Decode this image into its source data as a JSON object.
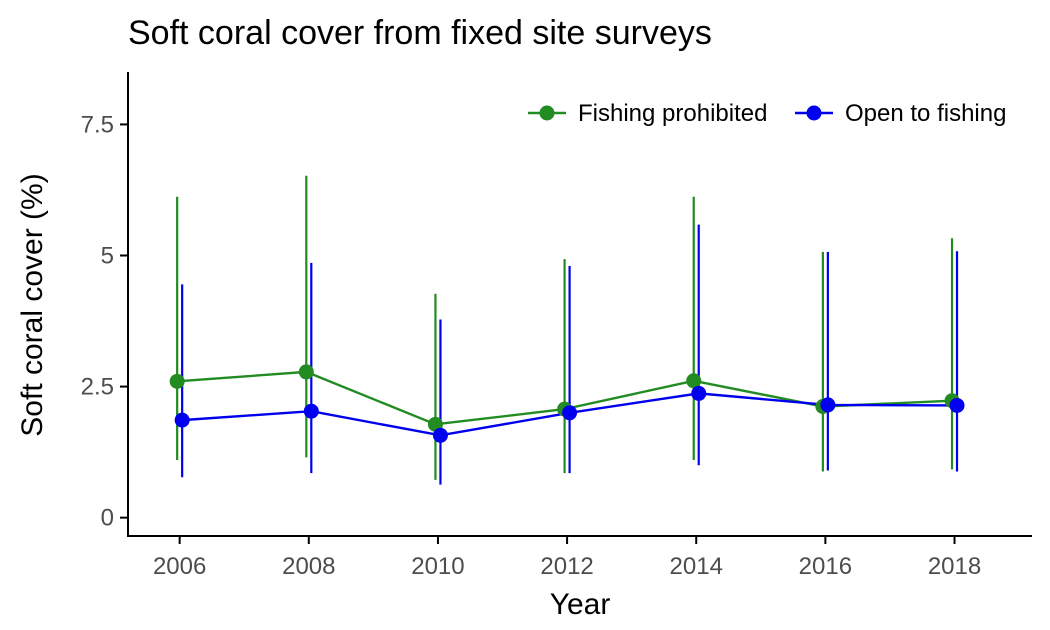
{
  "chart_data": {
    "type": "line",
    "title": "Soft coral cover from fixed site surveys",
    "xlabel": "Year",
    "ylabel": "Soft coral cover (%)",
    "x": [
      2006,
      2008,
      2010,
      2012,
      2014,
      2016,
      2018
    ],
    "xlim": [
      2005.2,
      2019.2
    ],
    "ylim": [
      -0.35,
      8.5
    ],
    "y_ticks": [
      0,
      2.5,
      5,
      7.5
    ],
    "y_tick_labels": [
      "0",
      "2.5",
      "5",
      "7.5"
    ],
    "x_tick_labels": [
      "2006",
      "2008",
      "2010",
      "2012",
      "2014",
      "2016",
      "2018"
    ],
    "grid": false,
    "legend_position": "top-right",
    "error_bars": true,
    "series": [
      {
        "name": "Fishing prohibited",
        "color": "#228B22",
        "values": [
          2.6,
          2.78,
          1.78,
          2.07,
          2.61,
          2.12,
          2.23
        ],
        "lower": [
          1.1,
          1.15,
          0.72,
          0.85,
          1.1,
          0.88,
          0.92
        ],
        "upper": [
          6.12,
          6.52,
          4.27,
          4.93,
          6.12,
          5.07,
          5.33
        ]
      },
      {
        "name": "Open to fishing",
        "color": "#0000EE",
        "values": [
          1.86,
          2.03,
          1.57,
          2.0,
          2.37,
          2.15,
          2.14
        ],
        "lower": [
          0.77,
          0.85,
          0.63,
          0.85,
          1.0,
          0.9,
          0.88
        ],
        "upper": [
          4.45,
          4.86,
          3.78,
          4.8,
          5.59,
          5.07,
          5.08
        ]
      }
    ]
  }
}
